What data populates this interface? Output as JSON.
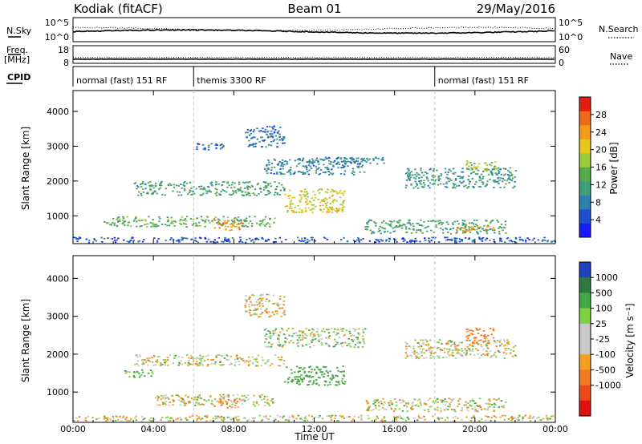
{
  "header": {
    "station": "Kodiak (fitACF)",
    "beam": "Beam 01",
    "date": "29/May/2016"
  },
  "summary": {
    "nsky_label": "N.Sky",
    "nsky_ticks": [
      "10^5",
      "10^0"
    ],
    "nsearch_label": "N.Search",
    "nsearch_ticks": [
      "10^5",
      "10^0"
    ],
    "freq_label": "Freq.",
    "freq_unit": "[MHz]",
    "freq_ticks": [
      "18",
      "8"
    ],
    "nave_label": "Nave",
    "nave_ticks": [
      "60",
      "0"
    ],
    "cpid_label": "CPID",
    "cpid_segments": [
      {
        "label": "normal (fast) 151 RF",
        "start_h": 0,
        "end_h": 6
      },
      {
        "label": "themis 3300 RF",
        "start_h": 6,
        "end_h": 18
      },
      {
        "label": "normal (fast) 151 RF",
        "start_h": 18,
        "end_h": 24
      }
    ]
  },
  "chart_data": [
    {
      "type": "heatmap",
      "name": "power",
      "ylabel": "Slant Range [km]",
      "xlabel": "Time UT",
      "xlim": [
        0,
        24
      ],
      "ylim": [
        200,
        4600
      ],
      "x_ticks": [
        "00:00",
        "04:00",
        "08:00",
        "12:00",
        "16:00",
        "20:00",
        "00:00"
      ],
      "y_ticks": [
        1000,
        2000,
        3000,
        4000
      ],
      "colorbar_label": "Power [dB]",
      "colorbar_ticks": [
        4,
        8,
        12,
        16,
        20,
        24,
        28
      ],
      "colorbar_colors": [
        "#1a1aff",
        "#1f4fd0",
        "#2f80b0",
        "#3f9f7a",
        "#58a84c",
        "#9ccc3a",
        "#e6c81c",
        "#f39a1b",
        "#ef6a16",
        "#e21e10"
      ],
      "features": [
        {
          "t_start": 0.0,
          "t_end": 24.0,
          "range_min": 250,
          "range_max": 400,
          "level": 4
        },
        {
          "t_start": 1.5,
          "t_end": 10.0,
          "range_min": 700,
          "range_max": 1000,
          "level": 14
        },
        {
          "t_start": 7.0,
          "t_end": 8.5,
          "range_min": 600,
          "range_max": 900,
          "level": 26
        },
        {
          "t_start": 3.0,
          "t_end": 10.5,
          "range_min": 1600,
          "range_max": 2000,
          "level": 12
        },
        {
          "t_start": 10.5,
          "t_end": 13.5,
          "range_min": 1100,
          "range_max": 1800,
          "level": 20
        },
        {
          "t_start": 9.5,
          "t_end": 14.5,
          "range_min": 2200,
          "range_max": 2700,
          "level": 8
        },
        {
          "t_start": 6.0,
          "t_end": 7.5,
          "range_min": 2900,
          "range_max": 3100,
          "level": 5
        },
        {
          "t_start": 8.5,
          "t_end": 10.5,
          "range_min": 3000,
          "range_max": 3600,
          "level": 6
        },
        {
          "t_start": 13.0,
          "t_end": 15.5,
          "range_min": 2500,
          "range_max": 2700,
          "level": 8
        },
        {
          "t_start": 14.5,
          "t_end": 21.5,
          "range_min": 500,
          "range_max": 900,
          "level": 12
        },
        {
          "t_start": 19.0,
          "t_end": 21.0,
          "range_min": 580,
          "range_max": 720,
          "level": 24
        },
        {
          "t_start": 16.5,
          "t_end": 22.0,
          "range_min": 1800,
          "range_max": 2400,
          "level": 10
        },
        {
          "t_start": 19.5,
          "t_end": 21.0,
          "range_min": 2300,
          "range_max": 2600,
          "level": 18
        }
      ]
    },
    {
      "type": "heatmap",
      "name": "velocity",
      "ylabel": "Slant Range [km]",
      "xlabel": "Time UT",
      "xlim": [
        0,
        24
      ],
      "ylim": [
        200,
        4600
      ],
      "x_ticks": [
        "00:00",
        "04:00",
        "08:00",
        "12:00",
        "16:00",
        "20:00",
        "00:00"
      ],
      "y_ticks": [
        1000,
        2000,
        3000,
        4000
      ],
      "colorbar_label": "Velocity [m s⁻¹]",
      "colorbar_ticks": [
        "1000",
        "500",
        "100",
        "25",
        "-25",
        "-100",
        "-500",
        "-1000"
      ],
      "colorbar_colors": [
        "#2040c0",
        "#2e7a3a",
        "#45a845",
        "#7fd040",
        "#c8c8c8",
        "#c8c8c8",
        "#f2a020",
        "#f27a20",
        "#ea4a18",
        "#e01010"
      ],
      "features": [
        {
          "t_start": 0.0,
          "t_end": 24.0,
          "range_min": 250,
          "range_max": 400,
          "velocity": 0
        },
        {
          "t_start": 4.0,
          "t_end": 10.0,
          "range_min": 650,
          "range_max": 950,
          "velocity": 0
        },
        {
          "t_start": 7.0,
          "t_end": 8.5,
          "range_min": 600,
          "range_max": 850,
          "velocity": -50
        },
        {
          "t_start": 3.0,
          "t_end": 10.5,
          "range_min": 1700,
          "range_max": 2000,
          "velocity": 0
        },
        {
          "t_start": 10.5,
          "t_end": 13.5,
          "range_min": 1200,
          "range_max": 1700,
          "velocity": 150
        },
        {
          "t_start": 9.5,
          "t_end": 14.5,
          "range_min": 2200,
          "range_max": 2700,
          "velocity": 30
        },
        {
          "t_start": 2.5,
          "t_end": 4.0,
          "range_min": 1400,
          "range_max": 1600,
          "velocity": 100
        },
        {
          "t_start": 8.5,
          "t_end": 10.5,
          "range_min": 3000,
          "range_max": 3600,
          "velocity": -30
        },
        {
          "t_start": 14.5,
          "t_end": 21.5,
          "range_min": 500,
          "range_max": 850,
          "velocity": 0
        },
        {
          "t_start": 16.5,
          "t_end": 22.0,
          "range_min": 1900,
          "range_max": 2400,
          "velocity": 0
        },
        {
          "t_start": 19.5,
          "t_end": 21.0,
          "range_min": 2300,
          "range_max": 2700,
          "velocity": -120
        }
      ]
    }
  ]
}
